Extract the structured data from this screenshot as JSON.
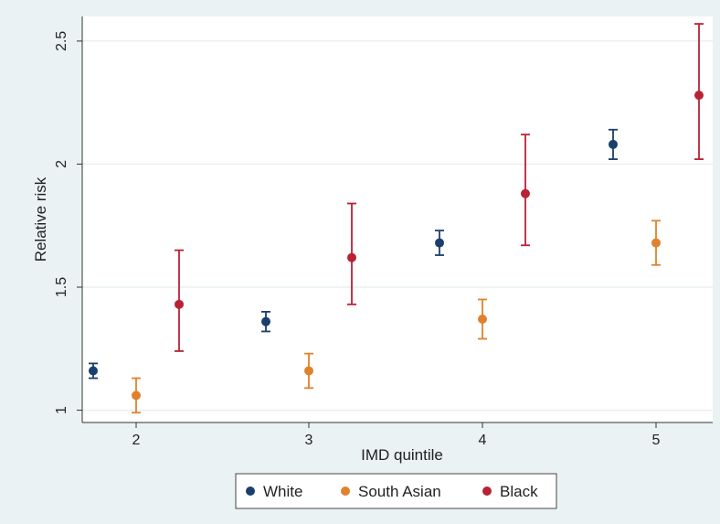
{
  "chart_data": {
    "type": "scatter",
    "title": "",
    "xlabel": "IMD quintile",
    "ylabel": "Relative risk",
    "categories": [
      "2",
      "3",
      "4",
      "5"
    ],
    "ylim": [
      0.95,
      2.6
    ],
    "yticks": [
      1,
      1.5,
      2,
      2.5
    ],
    "ytick_labels": [
      "1",
      "1.5",
      "2",
      "2.5"
    ],
    "grid": true,
    "legend_position": "bottom",
    "background_color": "#eaf2f3",
    "plot_background_color": "#ffffff",
    "series": [
      {
        "name": "White",
        "color": "#1a3f6d",
        "values": [
          1.16,
          1.36,
          1.68,
          2.08
        ],
        "lower": [
          1.13,
          1.32,
          1.63,
          2.02
        ],
        "upper": [
          1.19,
          1.4,
          1.73,
          2.14
        ]
      },
      {
        "name": "South Asian",
        "color": "#e0822b",
        "values": [
          1.06,
          1.16,
          1.37,
          1.68
        ],
        "lower": [
          0.99,
          1.09,
          1.29,
          1.59
        ],
        "upper": [
          1.13,
          1.23,
          1.45,
          1.77
        ]
      },
      {
        "name": "Black",
        "color": "#b82235",
        "values": [
          1.43,
          1.62,
          1.88,
          2.28
        ],
        "lower": [
          1.24,
          1.43,
          1.67,
          2.02
        ],
        "upper": [
          1.65,
          1.84,
          2.12,
          2.57
        ]
      }
    ]
  }
}
